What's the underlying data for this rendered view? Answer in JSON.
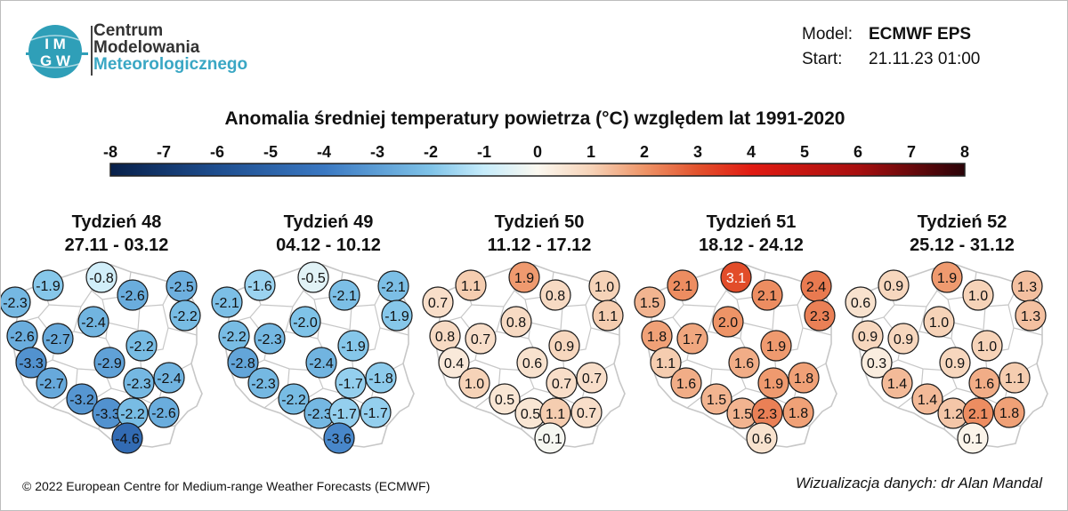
{
  "org": {
    "logo_text": "IMGW",
    "name_lines": [
      "Centrum",
      "Modelowania",
      "Meteorologicznego"
    ],
    "colors": {
      "logo": "#2f9fb8",
      "accent_text": "#3aa7c4"
    }
  },
  "model": {
    "label": "Model:",
    "value": "ECMWF EPS"
  },
  "start": {
    "label": "Start:",
    "value": "21.11.23 01:00"
  },
  "title": "Anomalia średniej temperatury powietrza (°C) względem lat 1991-2020",
  "legend": {
    "ticks": [
      "-8",
      "-7",
      "-6",
      "-5",
      "-4",
      "-3",
      "-2",
      "-1",
      "0",
      "1",
      "2",
      "3",
      "4",
      "5",
      "6",
      "7",
      "8"
    ],
    "min": -8,
    "max": 8,
    "color_stops": [
      {
        "v": -8,
        "c": "#08204a"
      },
      {
        "v": -6,
        "c": "#1e4e8f"
      },
      {
        "v": -4,
        "c": "#3a78c2"
      },
      {
        "v": -2,
        "c": "#7fc3e8"
      },
      {
        "v": -1,
        "c": "#c6ecfb"
      },
      {
        "v": 0,
        "c": "#fbf8f0"
      },
      {
        "v": 1,
        "c": "#f6d3b8"
      },
      {
        "v": 2,
        "c": "#ee9467"
      },
      {
        "v": 3,
        "c": "#e2522d"
      },
      {
        "v": 4,
        "c": "#e11b12"
      },
      {
        "v": 6,
        "c": "#a80f0f"
      },
      {
        "v": 8,
        "c": "#2a0308"
      }
    ]
  },
  "weeks": [
    {
      "title": "Tydzień 48",
      "dates": "27.11 - 03.12",
      "values": [
        "-2.3",
        "-1.9",
        "-0.8",
        "-2.6",
        "-2.5",
        "-2.2",
        "-2.4",
        "-2.6",
        "-2.7",
        "-3.3",
        "-2.9",
        "-2.2",
        "-2.7",
        "-2.3",
        "-2.4",
        "-3.2",
        "-3.3",
        "-2.2",
        "-2.6",
        "-4.6"
      ]
    },
    {
      "title": "Tydzień 49",
      "dates": "04.12 - 10.12",
      "values": [
        "-2.1",
        "-1.6",
        "-0.5",
        "-2.1",
        "-2.1",
        "-1.9",
        "-2.0",
        "-2.2",
        "-2.3",
        "-2.8",
        "-2.4",
        "-1.9",
        "-2.3",
        "-1.7",
        "-1.8",
        "-2.2",
        "-2.3",
        "-1.7",
        "-1.7",
        "-3.6"
      ]
    },
    {
      "title": "Tydzień 50",
      "dates": "11.12 - 17.12",
      "values": [
        "0.7",
        "1.1",
        "1.9",
        "0.8",
        "1.0",
        "1.1",
        "0.8",
        "0.8",
        "0.7",
        "0.4",
        "0.6",
        "0.9",
        "1.0",
        "0.7",
        "0.7",
        "0.5",
        "0.5",
        "1.1",
        "0.7",
        "-0.1"
      ]
    },
    {
      "title": "Tydzień 51",
      "dates": "18.12 - 24.12",
      "values": [
        "1.5",
        "2.1",
        "3.1",
        "2.1",
        "2.4",
        "2.3",
        "2.0",
        "1.8",
        "1.7",
        "1.1",
        "1.6",
        "1.9",
        "1.6",
        "1.9",
        "1.8",
        "1.5",
        "1.5",
        "2.3",
        "1.8",
        "0.6"
      ]
    },
    {
      "title": "Tydzień 52",
      "dates": "25.12 - 31.12",
      "values": [
        "0.6",
        "0.9",
        "1.9",
        "1.0",
        "1.3",
        "1.3",
        "1.0",
        "0.9",
        "0.9",
        "0.3",
        "0.9",
        "1.0",
        "1.4",
        "1.6",
        "1.1",
        "1.4",
        "1.2",
        "2.1",
        "1.8",
        "0.1"
      ]
    }
  ],
  "copyright": "© 2022 European Centre for Medium-range Weather Forecasts (ECMWF)",
  "credit": "Wizualizacja danych: dr Alan Mandal"
}
